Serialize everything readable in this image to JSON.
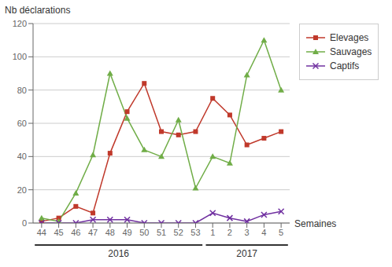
{
  "chart_data": {
    "type": "line",
    "xlabel": "Semaines",
    "ylabel": "Nb déclarations",
    "categories": [
      "44",
      "45",
      "46",
      "47",
      "48",
      "49",
      "50",
      "51",
      "52",
      "53",
      "1",
      "2",
      "3",
      "4",
      "5"
    ],
    "series": [
      {
        "name": "Elevages",
        "color": "#c0392b",
        "marker": "square",
        "values": [
          1,
          3,
          10,
          6,
          42,
          67,
          84,
          55,
          53,
          55,
          75,
          65,
          47,
          51,
          55
        ]
      },
      {
        "name": "Sauvages",
        "color": "#70ad47",
        "marker": "triangle",
        "values": [
          3,
          1,
          18,
          41,
          90,
          63,
          44,
          40,
          62,
          21,
          40,
          36,
          89,
          110,
          80
        ]
      },
      {
        "name": "Captifs",
        "color": "#7030a0",
        "marker": "cross",
        "values": [
          0,
          0,
          0,
          2,
          2,
          2,
          0,
          0,
          0,
          0,
          6,
          3,
          1,
          5,
          7
        ]
      }
    ],
    "ylim": [
      0,
      120
    ],
    "yticks": [
      0,
      20,
      40,
      60,
      80,
      100,
      120
    ],
    "grid": true,
    "legend": "right",
    "annotations": [
      {
        "text": "2016",
        "from": "44",
        "to": "53"
      },
      {
        "text": "2017",
        "from": "1",
        "to": "5"
      }
    ]
  }
}
